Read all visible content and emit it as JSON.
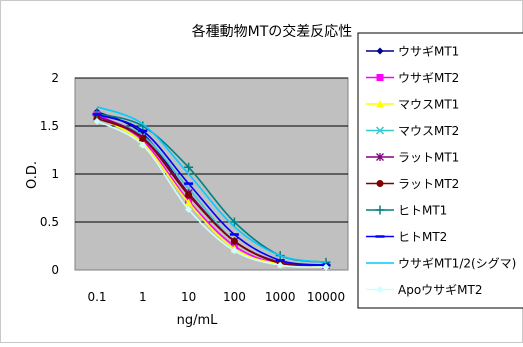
{
  "chart_data": {
    "type": "line",
    "title": "各種動物MTの交差反応性",
    "xlabel": "ng/mL",
    "ylabel": "O.D.",
    "x_scale": "log",
    "x": [
      0.1,
      1,
      10,
      100,
      1000,
      10000
    ],
    "x_tick_labels": [
      "0.1",
      "1",
      "10",
      "100",
      "1000",
      "10000"
    ],
    "ylim": [
      0,
      2
    ],
    "y_ticks": [
      0,
      0.5,
      1,
      1.5,
      2
    ],
    "y_tick_labels": [
      "0",
      "0.5",
      "1",
      "1.5",
      "2"
    ],
    "grid": "horizontal",
    "plot_background": "#c0c0c0",
    "legend_position": "right",
    "series": [
      {
        "name": "ウサギMT1",
        "color": "#00008b",
        "marker": "diamond",
        "values": [
          1.65,
          1.42,
          0.8,
          0.3,
          0.08,
          0.05
        ]
      },
      {
        "name": "ウサギMT2",
        "color": "#ff00ff",
        "marker": "square",
        "values": [
          1.62,
          1.35,
          0.72,
          0.25,
          0.06,
          0.04
        ]
      },
      {
        "name": "マウスMT1",
        "color": "#ffff00",
        "marker": "triangle",
        "values": [
          1.6,
          1.32,
          0.7,
          0.22,
          0.06,
          0.04
        ]
      },
      {
        "name": "マウスMT2",
        "color": "#33cccc",
        "marker": "x",
        "values": [
          1.58,
          1.4,
          0.85,
          0.3,
          0.08,
          0.05
        ]
      },
      {
        "name": "ラットMT1",
        "color": "#800080",
        "marker": "star",
        "values": [
          1.6,
          1.38,
          0.8,
          0.3,
          0.08,
          0.05
        ]
      },
      {
        "name": "ラットMT2",
        "color": "#800000",
        "marker": "circle",
        "values": [
          1.58,
          1.37,
          0.78,
          0.3,
          0.07,
          0.05
        ]
      },
      {
        "name": "ヒトMT1",
        "color": "#008080",
        "marker": "plus",
        "values": [
          1.63,
          1.5,
          1.07,
          0.5,
          0.15,
          0.08
        ]
      },
      {
        "name": "ヒトMT2",
        "color": "#0000ff",
        "marker": "dash",
        "values": [
          1.62,
          1.45,
          0.9,
          0.37,
          0.1,
          0.05
        ]
      },
      {
        "name": "ウサギMT1/2(シグマ)",
        "color": "#00ccff",
        "marker": "none",
        "values": [
          1.7,
          1.52,
          1.0,
          0.45,
          0.15,
          0.08
        ]
      },
      {
        "name": "ApoウサギMT2",
        "color": "#ccffff",
        "marker": "diamond",
        "values": [
          1.55,
          1.3,
          0.63,
          0.2,
          0.05,
          0.03
        ]
      }
    ]
  }
}
